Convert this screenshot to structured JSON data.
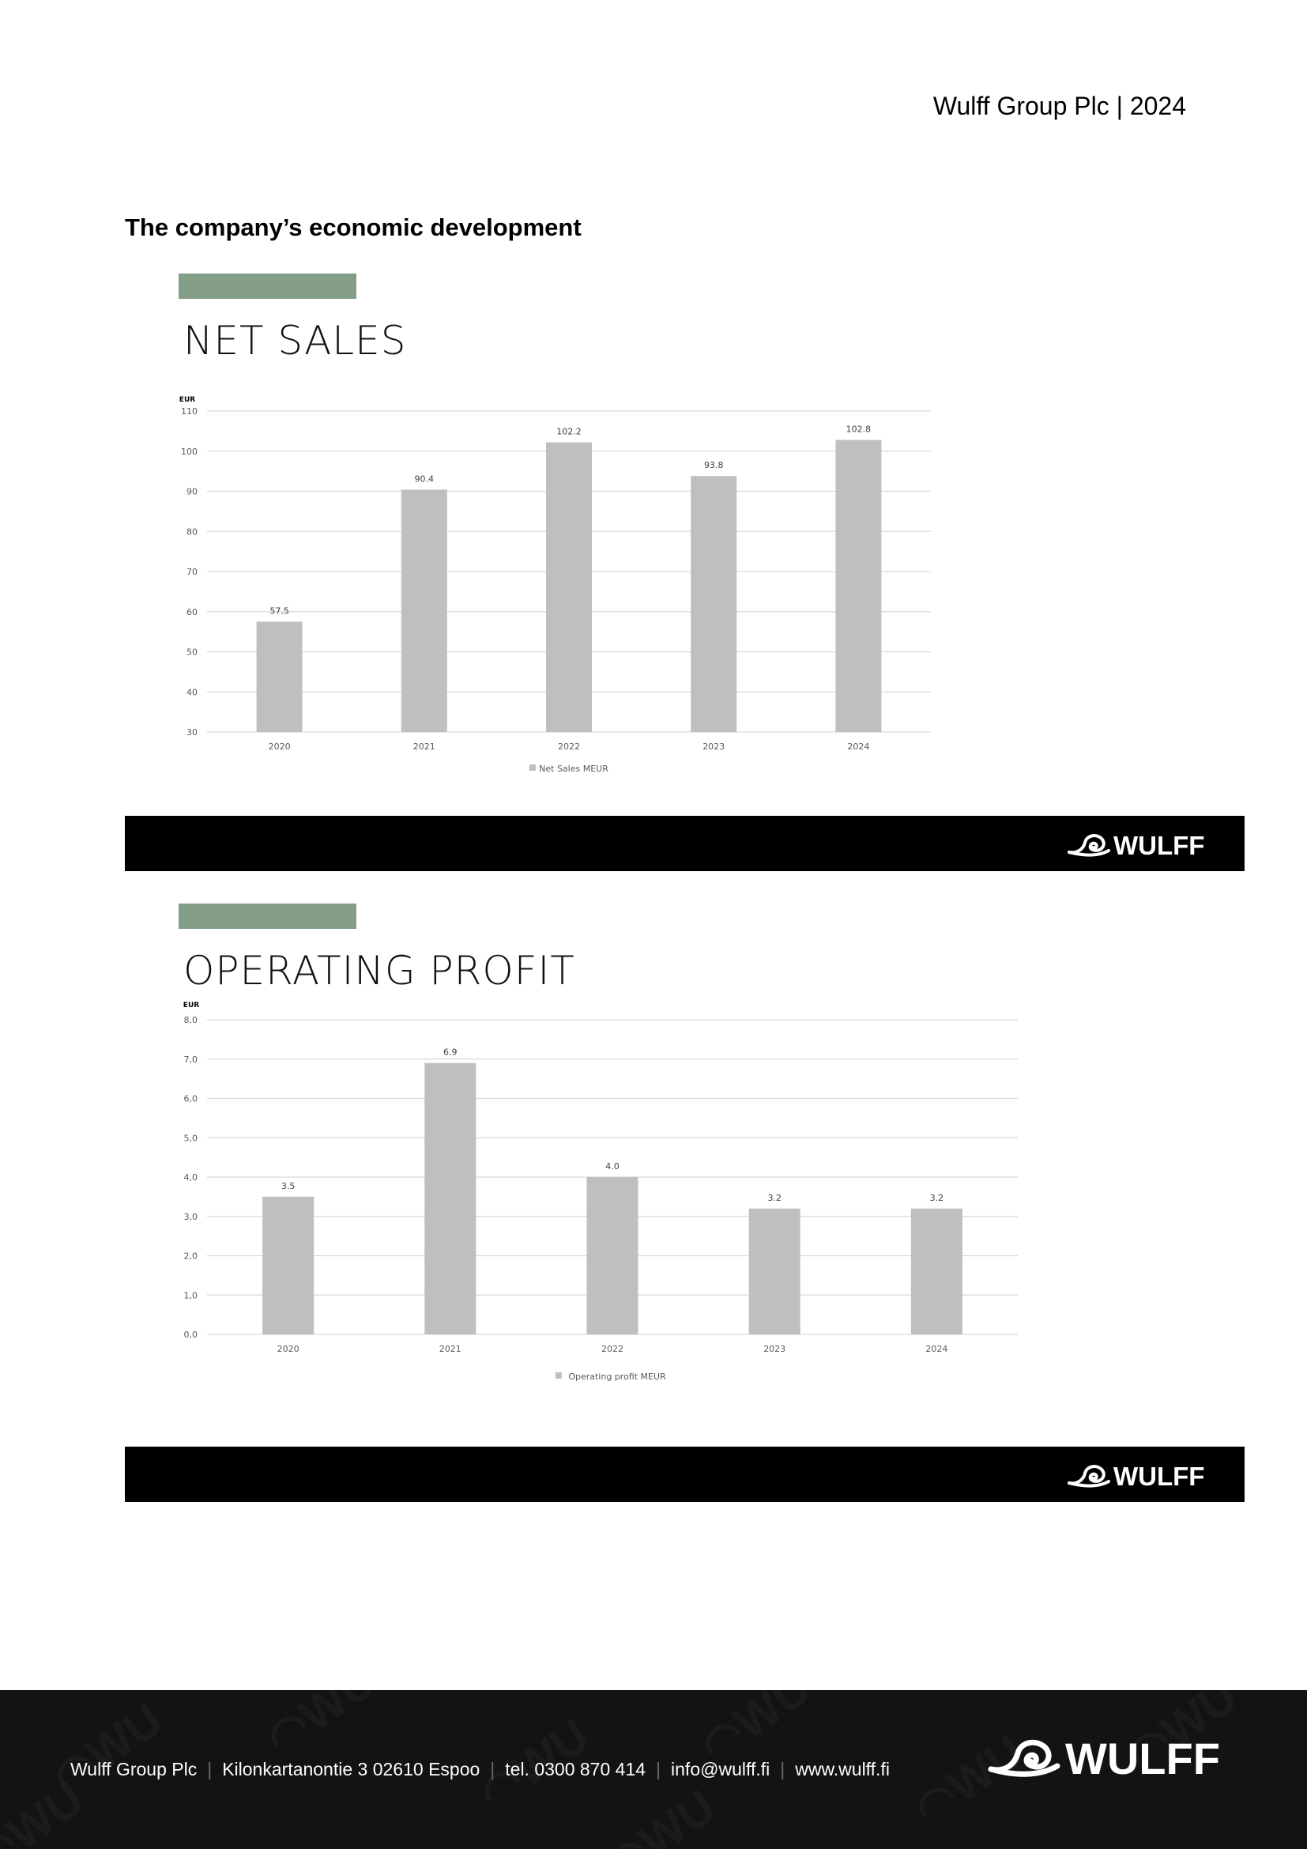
{
  "header": {
    "title": "Wulff Group Plc | 2024"
  },
  "page": {
    "heading": "The company’s economic development"
  },
  "brand": {
    "accent_color": "#839d87",
    "bar_color": "#bfbfbf",
    "band_color": "#000000",
    "logo_text": "WULFF"
  },
  "sections": [
    {
      "title": "NET SALES"
    },
    {
      "title": "OPERATING PROFIT"
    }
  ],
  "chart_data": [
    {
      "type": "bar",
      "title": "",
      "ylabel": "EUR",
      "xlabel": "",
      "categories": [
        "2020",
        "2021",
        "2022",
        "2023",
        "2024"
      ],
      "series": [
        {
          "name": "Net Sales MEUR",
          "values": [
            57.5,
            90.4,
            102.2,
            93.8,
            102.8
          ]
        }
      ],
      "data_labels": [
        "57.5",
        "90.4",
        "102.2",
        "93.8",
        "102.8"
      ],
      "ylim": [
        30,
        110
      ],
      "yticks": [
        "30",
        "40",
        "50",
        "60",
        "70",
        "80",
        "90",
        "100",
        "110"
      ],
      "grid": true,
      "legend": "bottom"
    },
    {
      "type": "bar",
      "title": "",
      "ylabel": "EUR",
      "xlabel": "",
      "categories": [
        "2020",
        "2021",
        "2022",
        "2023",
        "2024"
      ],
      "series": [
        {
          "name": "Operating profit MEUR",
          "values": [
            3.5,
            6.9,
            4.0,
            3.2,
            3.2
          ]
        }
      ],
      "data_labels": [
        "3.5",
        "6.9",
        "4.0",
        "3.2",
        "3.2"
      ],
      "ylim": [
        0,
        8
      ],
      "yticks": [
        "0,0",
        "1,0",
        "2,0",
        "3,0",
        "4,0",
        "5,0",
        "6,0",
        "7,0",
        "8,0"
      ],
      "grid": true,
      "legend": "bottom"
    }
  ],
  "footer": {
    "company": "Wulff Group Plc",
    "address": "Kilonkartanontie 3 02610 Espoo",
    "phone": "tel. 0300 870 414",
    "email": "info@wulff.fi",
    "website": "www.wulff.fi",
    "separator": "|"
  }
}
